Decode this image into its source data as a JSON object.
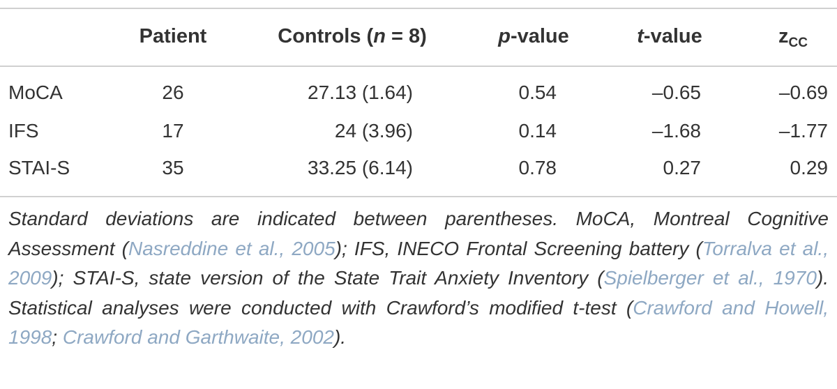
{
  "table": {
    "header": [
      [
        {
          "text": "Patient"
        }
      ],
      [
        {
          "text": "Controls ("
        },
        {
          "italic": "n"
        },
        {
          "text": " = 8)"
        }
      ],
      [
        {
          "italic": "p"
        },
        {
          "text": "-value"
        }
      ],
      [
        {
          "italic": "t"
        },
        {
          "text": "-value"
        }
      ],
      [
        {
          "text": "z"
        },
        {
          "sub": "CC"
        }
      ]
    ],
    "rows": [
      [
        "MoCA",
        "26",
        "27.13 (1.64)",
        "0.54",
        "–0.65",
        "–0.69"
      ],
      [
        "IFS",
        "17",
        "24 (3.96)",
        "0.14",
        "–1.68",
        "–1.77"
      ],
      [
        "STAI-S",
        "35",
        "33.25 (6.14)",
        "0.78",
        "0.27",
        "0.29"
      ]
    ]
  },
  "footnote": [
    {
      "text": "Standard deviations are indicated between parentheses. MoCA, Montreal Cognitive Assessment ("
    },
    {
      "cite": "Nasreddine et al., 2005"
    },
    {
      "text": "); IFS, INECO Frontal Screening battery ("
    },
    {
      "cite": "Torralva et al., 2009"
    },
    {
      "text": "); STAI-S, state version of the State Trait Anxiety Inventory ("
    },
    {
      "cite": "Spielberger et al., 1970"
    },
    {
      "text": "). Statistical analyses were conducted with Crawford’s modified t-test ("
    },
    {
      "cite": "Crawford and Howell, 1998"
    },
    {
      "text": "; "
    },
    {
      "cite": "Crawford and Garthwaite, 2002"
    },
    {
      "text": ")."
    }
  ]
}
